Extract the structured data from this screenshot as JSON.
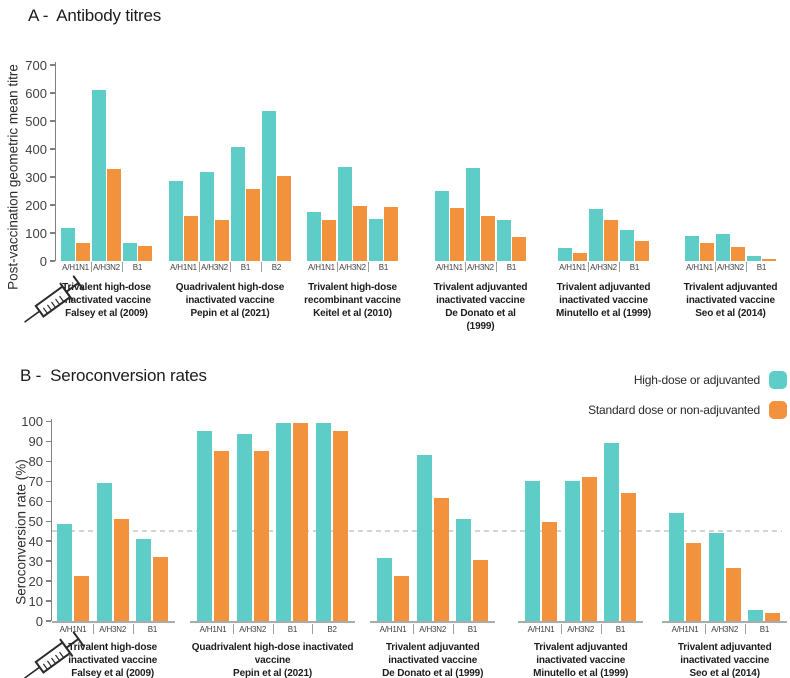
{
  "legend": {
    "items": [
      {
        "label": "High-dose or adjuvanted",
        "color": "#5ECDC8"
      },
      {
        "label": "Standard dose or non-adjuvanted",
        "color": "#F2923C"
      }
    ]
  },
  "colors": {
    "high_dose": "#5ECDC8",
    "standard": "#F2923C",
    "axis": "#808184",
    "baseline": "#A9ABAE",
    "reference_line": "#D4D5D6"
  },
  "chart_data": [
    {
      "id": "A",
      "type": "bar",
      "title": "A -  Antibody titres",
      "ylabel": "Post-vaccination geometric mean titre",
      "ylim": [
        0,
        700
      ],
      "ytick_step": 100,
      "grid": false,
      "legend_position": "none",
      "series_names": [
        "High-dose or adjuvanted",
        "Standard dose or non-adjuvanted"
      ],
      "groups": [
        {
          "caption": [
            "Trivalent high-dose",
            "inactivated vaccine",
            "Falsey et al (2009)"
          ],
          "categories": [
            "A/H1N1",
            "A/H3N2",
            "B1"
          ],
          "high_dose": [
            118,
            610,
            66
          ],
          "standard": [
            66,
            330,
            52
          ]
        },
        {
          "caption": [
            "Quadrivalent high-dose",
            "inactivated vaccine",
            "Pepin et al (2021)"
          ],
          "categories": [
            "A/H1N1",
            "A/H3N2",
            "B1",
            "B2"
          ],
          "high_dose": [
            285,
            318,
            406,
            535
          ],
          "standard": [
            162,
            148,
            258,
            305
          ]
        },
        {
          "caption": [
            "Trivalent high-dose",
            "recombinant vaccine",
            "Keitel et al (2010)"
          ],
          "categories": [
            "A/H1N1",
            "A/H3N2",
            "B1"
          ],
          "high_dose": [
            174,
            335,
            149
          ],
          "standard": [
            148,
            197,
            192
          ]
        },
        {
          "caption": [
            "Trivalent adjuvanted",
            "inactivated vaccine",
            "De Donato et al",
            "(1999)"
          ],
          "categories": [
            "A/H1N1",
            "A/H3N2",
            "B1"
          ],
          "high_dose": [
            249,
            332,
            148
          ],
          "standard": [
            190,
            161,
            85
          ]
        },
        {
          "caption": [
            "Trivalent adjuvanted",
            "inactivated vaccine",
            "Minutello et al (1999)"
          ],
          "categories": [
            "A/H1N1",
            "A/H3N2",
            "B1"
          ],
          "high_dose": [
            45,
            185,
            111
          ],
          "standard": [
            30,
            146,
            72
          ]
        },
        {
          "caption": [
            "Trivalent adjuvanted",
            "inactivated vaccine",
            "Seo et al (2014)"
          ],
          "categories": [
            "A/H1N1",
            "A/H3N2",
            "B1"
          ],
          "high_dose": [
            88,
            98,
            18
          ],
          "standard": [
            63,
            50,
            7
          ]
        }
      ]
    },
    {
      "id": "B",
      "type": "bar",
      "title": "B -  Seroconversion rates",
      "ylabel": "Seroconversion rate (%)",
      "ylim": [
        0,
        100
      ],
      "ytick_step": 10,
      "grid": false,
      "reference_line": 45,
      "legend_position": "top-right",
      "series_names": [
        "High-dose or adjuvanted",
        "Standard dose or non-adjuvanted"
      ],
      "groups": [
        {
          "caption": [
            "Trivalent high-dose",
            "inactivated vaccine",
            "Falsey et al (2009)"
          ],
          "categories": [
            "A/H1N1",
            "A/H3N2",
            "B1"
          ],
          "high_dose": [
            48.5,
            69,
            41
          ],
          "standard": [
            22.5,
            51,
            32
          ]
        },
        {
          "caption": [
            "Quadrivalent high-dose inactivated",
            "vaccine",
            "Pepin et al (2021)"
          ],
          "categories": [
            "A/H1N1",
            "A/H3N2",
            "B1",
            "B2"
          ],
          "high_dose": [
            95,
            93.5,
            99,
            99
          ],
          "standard": [
            85,
            85,
            99,
            95
          ]
        },
        {
          "caption": [
            "Trivalent adjuvanted",
            "inactivated vaccine",
            "De Donato et al (1999)"
          ],
          "categories": [
            "A/H1N1",
            "A/H3N2",
            "B1"
          ],
          "high_dose": [
            31.5,
            83,
            51
          ],
          "standard": [
            22.5,
            61.5,
            30.5
          ]
        },
        {
          "caption": [
            "Trivalent adjuvanted",
            "inactivated vaccine",
            "Minutello et al (1999)"
          ],
          "categories": [
            "A/H1N1",
            "A/H3N2",
            "B1"
          ],
          "high_dose": [
            70,
            70,
            89
          ],
          "standard": [
            49.5,
            72,
            64
          ]
        },
        {
          "caption": [
            "Trivalent adjuvanted",
            "inactivated vaccine",
            "Seo et al (2014)"
          ],
          "categories": [
            "A/H1N1",
            "A/H3N2",
            "B1"
          ],
          "high_dose": [
            54,
            44,
            5.5
          ],
          "standard": [
            39,
            26.5,
            4
          ]
        }
      ]
    }
  ]
}
